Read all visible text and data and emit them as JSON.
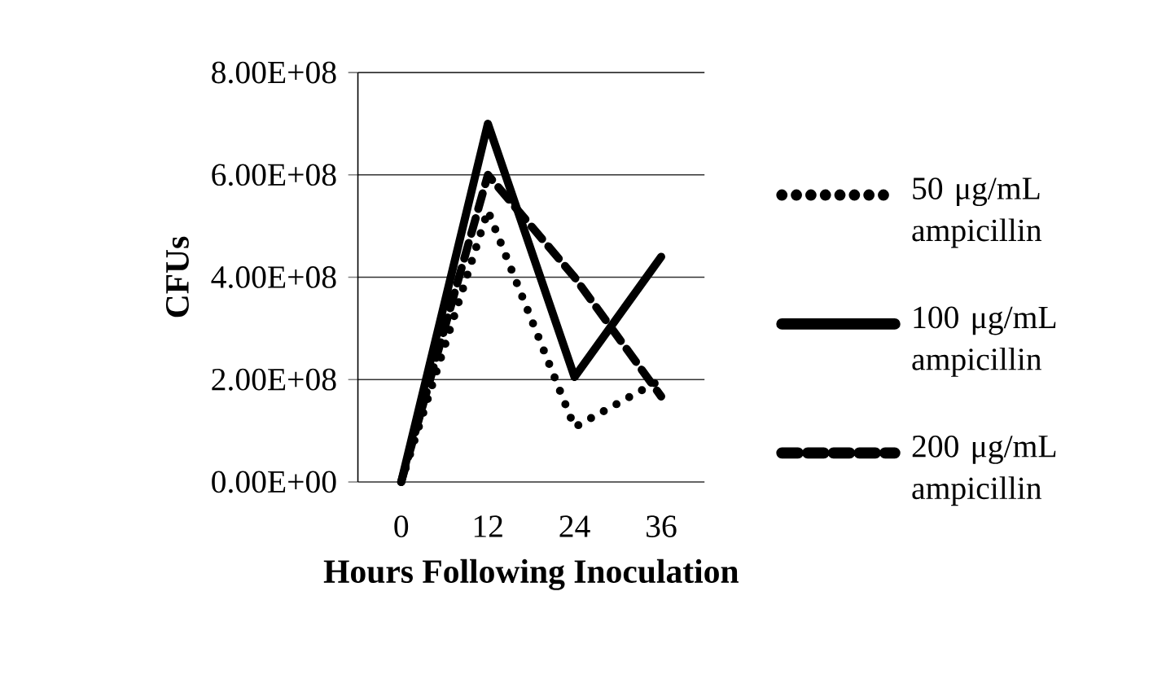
{
  "chart_data": {
    "type": "line",
    "xlabel": "Hours Following Inoculation",
    "ylabel": "CFUs",
    "x": [
      0,
      12,
      24,
      36
    ],
    "xlim": [
      -6,
      42
    ],
    "xticks": [
      0,
      12,
      24,
      36
    ],
    "ylim": [
      0,
      800000000
    ],
    "yticks": [
      {
        "value": 0,
        "label": "0.00E+00"
      },
      {
        "value": 200000000,
        "label": "2.00E+08"
      },
      {
        "value": 400000000,
        "label": "4.00E+08"
      },
      {
        "value": 600000000,
        "label": "6.00E+08"
      },
      {
        "value": 800000000,
        "label": "8.00E+08"
      }
    ],
    "grid": "y",
    "legend": "right",
    "marker": "none",
    "series": [
      {
        "name": "50 μg/mL ampicillin",
        "color": "#000000",
        "line_style": "dotted",
        "values": [
          0,
          530000000,
          107000000,
          200000000
        ]
      },
      {
        "name": "100 μg/mL ampicillin",
        "color": "#000000",
        "line_style": "solid",
        "values": [
          0,
          700000000,
          205000000,
          440000000
        ]
      },
      {
        "name": "200 μg/mL ampicillin",
        "color": "#000000",
        "line_style": "dashed",
        "values": [
          0,
          600000000,
          400000000,
          167000000
        ]
      }
    ]
  }
}
